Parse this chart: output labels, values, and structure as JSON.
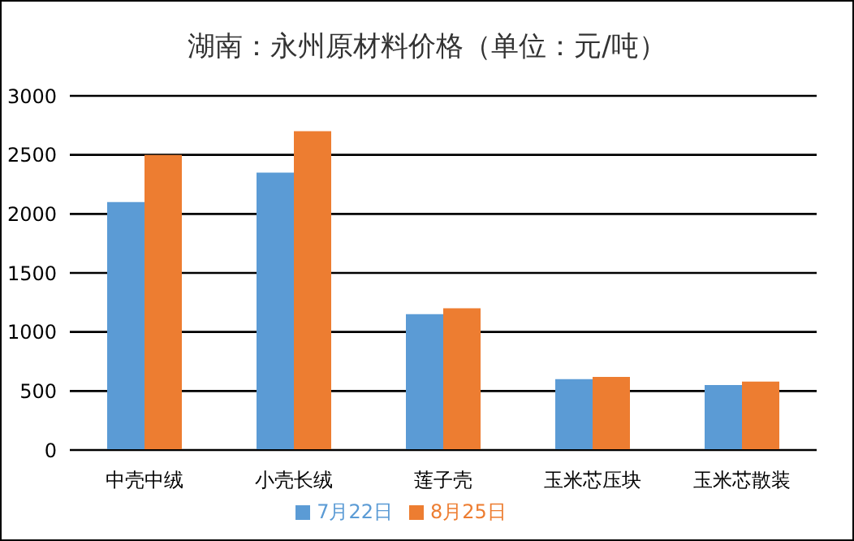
{
  "chart_data": {
    "type": "bar",
    "title": "湖南：永州原材料价格（单位：元/吨）",
    "categories": [
      "中壳中绒",
      "小壳长绒",
      "莲子壳",
      "玉米芯压块",
      "玉米芯散装"
    ],
    "series": [
      {
        "name": "7月22日",
        "color": "#5b9bd5",
        "values": [
          2100,
          2350,
          1150,
          600,
          550
        ]
      },
      {
        "name": "8月25日",
        "color": "#ed7d31",
        "values": [
          2500,
          2700,
          1200,
          620,
          580
        ]
      }
    ],
    "ylim": [
      0,
      3000
    ],
    "yticks": [
      0,
      500,
      1000,
      1500,
      2000,
      2500,
      3000
    ],
    "grid": "y",
    "legend": "bottom"
  }
}
